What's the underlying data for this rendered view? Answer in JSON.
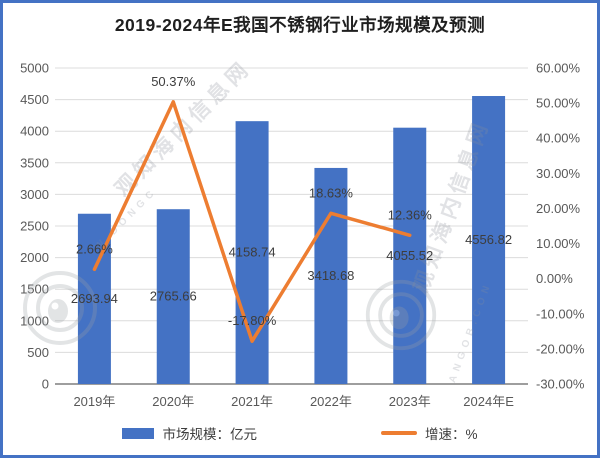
{
  "frame": {
    "border_color": "#4472c4",
    "background": "#ffffff"
  },
  "chart_data": {
    "type": "bar",
    "subtype": "combo-bar-line",
    "title": "2019-2024年E我国不锈钢行业市场规模及预测",
    "categories": [
      "2019年",
      "2020年",
      "2021年",
      "2022年",
      "2023年",
      "2024年E"
    ],
    "series": [
      {
        "name": "市场规模：亿元",
        "type": "bar",
        "axis": "left",
        "color": "#4472c4",
        "values": [
          2693.94,
          2765.66,
          4158.74,
          3418.68,
          4055.52,
          4556.82
        ],
        "labels": [
          "2693.94",
          "2765.66",
          "4158.74",
          "3418.68",
          "4055.52",
          "4556.82"
        ]
      },
      {
        "name": "增速：%",
        "type": "line",
        "axis": "right",
        "color": "#ed7d31",
        "values": [
          2.66,
          50.37,
          -17.8,
          18.63,
          12.36,
          null
        ],
        "labels": [
          "2.66%",
          "50.37%",
          "-17.80%",
          "18.63%",
          "12.36%",
          ""
        ]
      }
    ],
    "left_axis": {
      "min": 0,
      "max": 5000,
      "step": 500,
      "tick_labels": [
        "0",
        "500",
        "1000",
        "1500",
        "2000",
        "2500",
        "3000",
        "3500",
        "4000",
        "4500",
        "5000"
      ]
    },
    "right_axis": {
      "min": -30,
      "max": 60,
      "step": 10,
      "tick_labels": [
        "-30.00%",
        "-20.00%",
        "-10.00%",
        "0.00%",
        "10.00%",
        "20.00%",
        "30.00%",
        "40.00%",
        "50.00%",
        "60.00%"
      ]
    },
    "grid": true,
    "legend_position": "bottom",
    "colors": {
      "grid": "#dcdcdc",
      "axis_line": "#7f7f7f",
      "tick_text": "#595959",
      "data_label_text": "#3d3d3d"
    }
  },
  "legend": {
    "bar_label": "市场规模：亿元",
    "line_label": "增速：%"
  },
  "watermark": {
    "text_cn": "观知海内信息网",
    "fragments": [
      "W.DONGC",
      "ANGOB.CON"
    ],
    "color": "#8a9099"
  }
}
